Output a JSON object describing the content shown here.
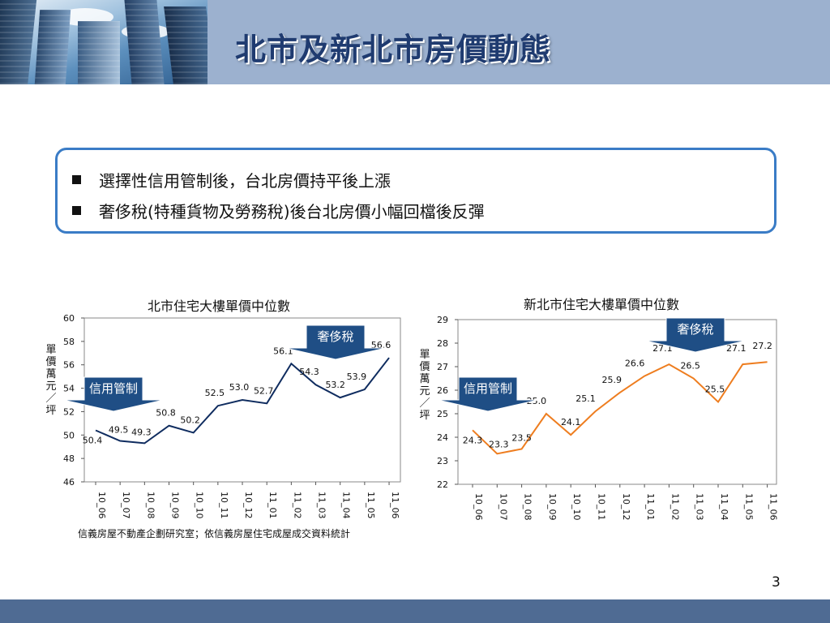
{
  "slide": {
    "title": "北市及新北市房價動態",
    "bullets": [
      "選擇性信用管制後，台北房價持平後上漲",
      "奢侈稅(特種貨物及勞務稅)後台北房價小幅回檔後反彈"
    ],
    "source": "信義房屋不動產企劃研究室；依信義房屋住宅成屋成交資料統計",
    "page_number": "3",
    "colors": {
      "header": "#9cb1cf",
      "title": "#1f3b70",
      "box_border": "#3a7cc6",
      "footer": "#4f6b93",
      "callout": "#1f4e85"
    }
  },
  "chart_data": [
    {
      "type": "line",
      "title": "北市住宅大樓單價中位數",
      "ylabel": "單價萬元／坪",
      "categories": [
        "10_06",
        "10_07",
        "10_08",
        "10_09",
        "10_10",
        "10_11",
        "10_12",
        "11_01",
        "11_02",
        "11_03",
        "11_04",
        "11_05",
        "11_06"
      ],
      "values": [
        50.4,
        49.5,
        49.3,
        50.8,
        50.2,
        52.5,
        53.0,
        52.7,
        56.1,
        54.3,
        53.2,
        53.9,
        56.6
      ],
      "ylim": [
        46,
        60
      ],
      "yticks": [
        46,
        48,
        50,
        52,
        54,
        56,
        58,
        60
      ],
      "line_color": "#0f2c5f",
      "grid": false,
      "annotations": [
        "信用管制",
        "奢侈稅"
      ]
    },
    {
      "type": "line",
      "title": "新北市住宅大樓單價中位數",
      "ylabel": "單價萬元／坪",
      "categories": [
        "10_06",
        "10_07",
        "10_08",
        "10_09",
        "10_10",
        "10_11",
        "10_12",
        "11_01",
        "11_02",
        "11_03",
        "11_04",
        "11_05",
        "11_06"
      ],
      "values": [
        24.3,
        23.3,
        23.5,
        25.0,
        24.1,
        25.1,
        25.9,
        26.6,
        27.1,
        26.5,
        25.5,
        27.1,
        27.2
      ],
      "ylim": [
        22,
        29
      ],
      "yticks": [
        22,
        23,
        24,
        25,
        26,
        27,
        28,
        29
      ],
      "line_color": "#ee7d1f",
      "grid": false,
      "annotations": [
        "信用管制",
        "奢侈稅"
      ]
    }
  ]
}
